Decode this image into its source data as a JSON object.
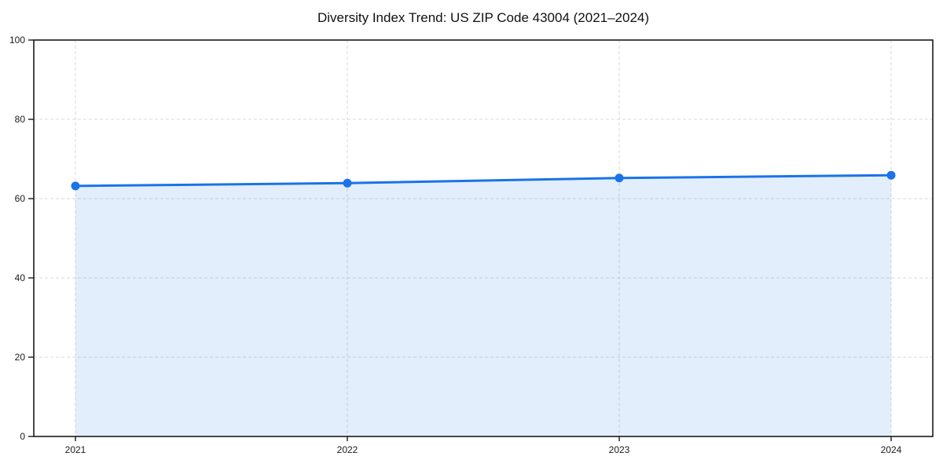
{
  "page": {
    "title": "Diversity Index Trend: US ZIP Code 43004 (2021–2024)"
  },
  "chart_data": {
    "type": "area",
    "title": "Diversity Index Trend: US ZIP Code 43004 (2021–2024)",
    "x": [
      2021,
      2022,
      2023,
      2024
    ],
    "series": [
      {
        "name": "Diversity Index",
        "values": [
          63.2,
          63.9,
          65.2,
          65.9
        ]
      }
    ],
    "xlabel": "",
    "ylabel": "",
    "ylim": [
      0,
      100
    ],
    "y_ticks": [
      0,
      20,
      40,
      60,
      80,
      100
    ],
    "grid": "dashed",
    "legend": "none",
    "colors": {
      "line": "#1a73e8",
      "marker": "#1a73e8",
      "fill": "#1a73e8",
      "fill_opacity": 0.12,
      "gridline": "#d9d9d9",
      "spine": "#1a1a1a",
      "tick_label": "#1a1a1a",
      "background": "#ffffff"
    }
  }
}
